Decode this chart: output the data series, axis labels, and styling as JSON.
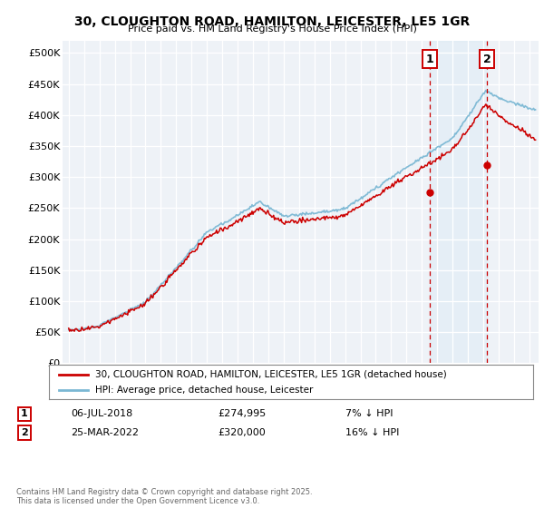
{
  "title": "30, CLOUGHTON ROAD, HAMILTON, LEICESTER, LE5 1GR",
  "subtitle": "Price paid vs. HM Land Registry's House Price Index (HPI)",
  "ylabel_ticks": [
    "£0",
    "£50K",
    "£100K",
    "£150K",
    "£200K",
    "£250K",
    "£300K",
    "£350K",
    "£400K",
    "£450K",
    "£500K"
  ],
  "ytick_values": [
    0,
    50000,
    100000,
    150000,
    200000,
    250000,
    300000,
    350000,
    400000,
    450000,
    500000
  ],
  "ylim": [
    0,
    520000
  ],
  "xlim_start": 1994.6,
  "xlim_end": 2025.6,
  "hpi_color": "#7bb8d4",
  "price_color": "#cc0000",
  "shade_color": "#d6e8f5",
  "marker1_date": 2018.51,
  "marker1_price": 274995,
  "marker2_date": 2022.23,
  "marker2_price": 320000,
  "legend1": "30, CLOUGHTON ROAD, HAMILTON, LEICESTER, LE5 1GR (detached house)",
  "legend2": "HPI: Average price, detached house, Leicester",
  "annotation1_date": "06-JUL-2018",
  "annotation1_price": "£274,995",
  "annotation1_note": "7% ↓ HPI",
  "annotation2_date": "25-MAR-2022",
  "annotation2_price": "£320,000",
  "annotation2_note": "16% ↓ HPI",
  "footer": "Contains HM Land Registry data © Crown copyright and database right 2025.\nThis data is licensed under the Open Government Licence v3.0.",
  "background_color": "#ffffff",
  "plot_bg_color": "#eef2f7",
  "grid_color": "#ffffff",
  "dashed_line_color": "#cc0000",
  "title_fontsize": 10,
  "subtitle_fontsize": 8
}
